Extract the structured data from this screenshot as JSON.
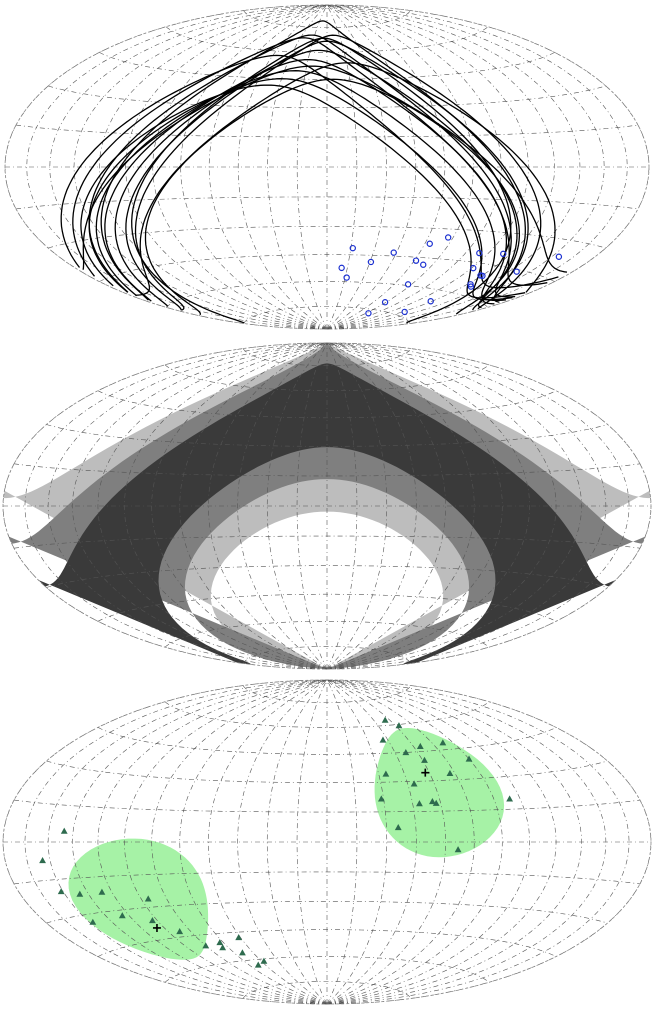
{
  "colors": {
    "track": "#000000",
    "event_marker": "#1a2fd0",
    "level_dark": "#3a3a3a",
    "level_mid": "#7f7f7f",
    "level_light": "#bdbdbd",
    "region_fill": "#a6f2a6",
    "point_marker": "#2e6b4e",
    "center_marker": "#000000",
    "grid": "#555555"
  },
  "panels": [
    {
      "id": "tracks",
      "markers": "blue-circle-icon",
      "events": [
        [
          0.4,
          -0.38
        ],
        [
          0.34,
          -0.52
        ],
        [
          0.09,
          -0.46
        ],
        [
          0.06,
          -0.58
        ],
        [
          0.09,
          -0.64
        ],
        [
          0.17,
          -0.54
        ],
        [
          0.24,
          -0.48
        ],
        [
          0.35,
          -0.42
        ],
        [
          0.38,
          -0.54
        ],
        [
          0.4,
          -0.66
        ],
        [
          0.41,
          -0.78
        ],
        [
          0.44,
          -0.86
        ],
        [
          0.55,
          -0.45
        ],
        [
          0.59,
          -0.53
        ],
        [
          0.66,
          -0.56
        ],
        [
          0.64,
          -0.44
        ],
        [
          0.68,
          -0.61
        ],
        [
          0.78,
          -0.51
        ],
        [
          0.86,
          -0.41
        ],
        [
          0.67,
          -0.56
        ],
        [
          0.68,
          -0.81
        ],
        [
          0.66,
          -0.73
        ],
        [
          0.7,
          -0.62
        ]
      ],
      "tracks": [
        {
          "lon0": 0.38,
          "amp": 0.6,
          "off": -0.05
        },
        {
          "lon0": 0.42,
          "amp": 0.64,
          "off": -0.02
        },
        {
          "lon0": 0.46,
          "amp": 0.68,
          "off": 0.0
        },
        {
          "lon0": 0.5,
          "amp": 0.72,
          "off": 0.02
        },
        {
          "lon0": 0.34,
          "amp": 0.58,
          "off": -0.08
        },
        {
          "lon0": 0.3,
          "amp": 0.56,
          "off": -0.1
        },
        {
          "lon0": 0.54,
          "amp": 0.74,
          "off": 0.04
        },
        {
          "lon0": 0.44,
          "amp": 0.52,
          "off": 0.06
        },
        {
          "lon0": 0.48,
          "amp": 0.8,
          "off": -0.04
        },
        {
          "lon0": 0.4,
          "amp": 0.7,
          "off": 0.08
        },
        {
          "lon0": 0.36,
          "amp": 0.66,
          "off": 0.1
        },
        {
          "lon0": 0.52,
          "amp": 0.62,
          "off": -0.12
        },
        {
          "lon0": 0.58,
          "amp": 0.6,
          "off": 0.0
        },
        {
          "lon0": 0.28,
          "amp": 0.62,
          "off": 0.02
        },
        {
          "lon0": 0.45,
          "amp": 0.76,
          "off": 0.12
        }
      ]
    },
    {
      "id": "exposure",
      "levels": [
        "level_light",
        "level_mid",
        "level_dark"
      ],
      "band_center_lon": 0.5,
      "band_amplitude": 0.62
    },
    {
      "id": "clusters",
      "markers": "triangle-icon",
      "regions": [
        {
          "center": [
            0.34,
            0.28
          ],
          "extent": [
            0.2,
            0.38
          ],
          "tilt": -0.4
        },
        {
          "center": [
            -0.6,
            -0.3
          ],
          "extent": [
            0.26,
            0.32
          ],
          "tilt": 0.6
        }
      ],
      "centers": [
        [
          0.32,
          0.38
        ],
        [
          -0.61,
          -0.44
        ]
      ],
      "points": [
        [
          0.31,
          0.7
        ],
        [
          0.35,
          0.66
        ],
        [
          0.23,
          0.58
        ],
        [
          0.36,
          0.53
        ],
        [
          0.29,
          0.5
        ],
        [
          0.34,
          0.45
        ],
        [
          0.46,
          0.54
        ],
        [
          0.4,
          0.37
        ],
        [
          0.55,
          0.22
        ],
        [
          0.19,
          0.38
        ],
        [
          0.27,
          0.32
        ],
        [
          0.27,
          0.21
        ],
        [
          0.32,
          0.21
        ],
        [
          0.16,
          0.24
        ],
        [
          0.2,
          0.08
        ],
        [
          0.37,
          -0.04
        ],
        [
          0.5,
          0.44
        ],
        [
          0.31,
          0.22
        ],
        [
          -0.78,
          0.05
        ],
        [
          -0.86,
          -0.08
        ],
        [
          -0.84,
          -0.22
        ],
        [
          -0.78,
          -0.24
        ],
        [
          -0.7,
          -0.24
        ],
        [
          -0.82,
          -0.37
        ],
        [
          -0.69,
          -0.36
        ],
        [
          -0.56,
          -0.29
        ],
        [
          -0.6,
          -0.4
        ],
        [
          -0.54,
          -0.47
        ],
        [
          -0.5,
          -0.56
        ],
        [
          -0.43,
          -0.55
        ],
        [
          -0.38,
          -0.62
        ],
        [
          -0.37,
          -0.7
        ],
        [
          -0.34,
          -0.53
        ],
        [
          -0.32,
          -0.68
        ],
        [
          -0.44,
          -0.58
        ]
      ]
    }
  ]
}
